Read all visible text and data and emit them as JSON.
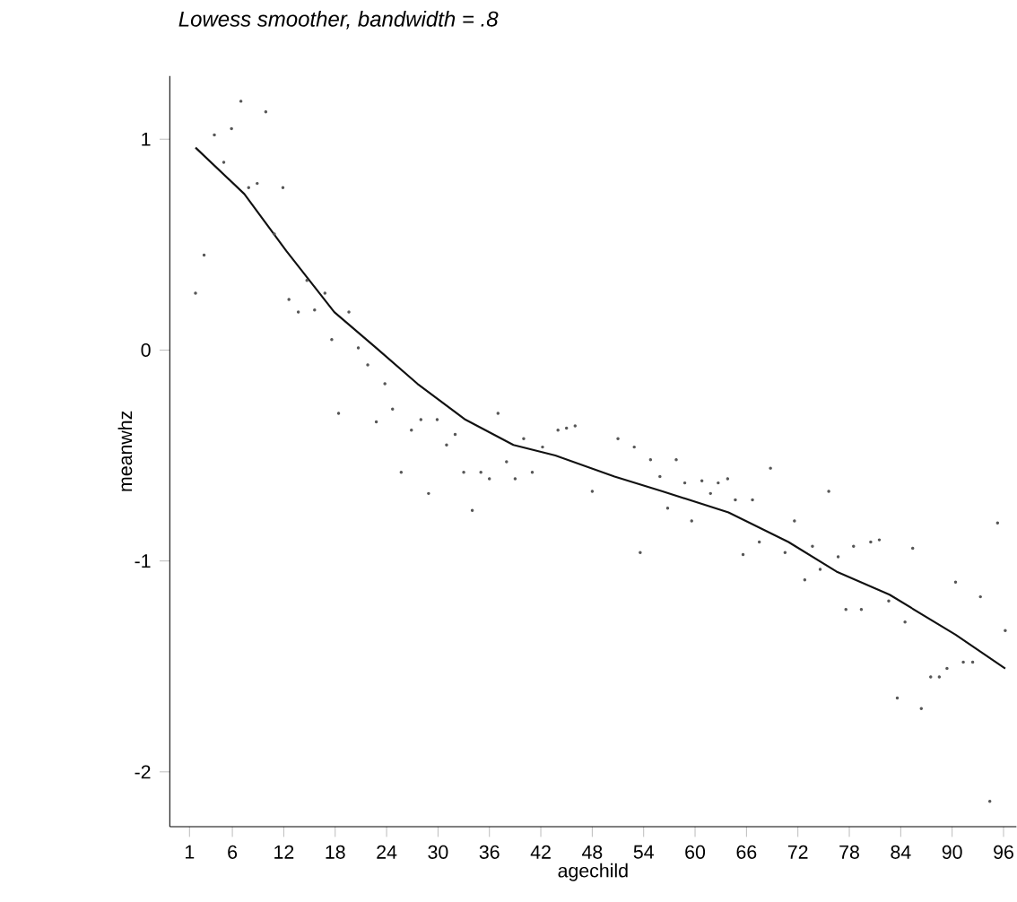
{
  "chart_data": {
    "type": "scatter",
    "title": "*Lowess smoother, bandwidth = .8*",
    "xlabel": "agechild",
    "ylabel": "meanwhz",
    "xlim": [
      -1.3,
      97.5
    ],
    "ylim": [
      -2.26,
      1.3
    ],
    "xticks": [
      1,
      6,
      12,
      18,
      24,
      30,
      36,
      42,
      48,
      54,
      60,
      66,
      72,
      78,
      84,
      90,
      96
    ],
    "yticks": [
      -2,
      -1,
      0,
      1
    ],
    "series": [
      {
        "color": "#555555",
        "x": [
          1.7,
          2.7,
          3.9,
          5,
          5.9,
          7,
          7.9,
          8.9,
          9.9,
          10.9,
          11.9,
          12.6,
          13.7,
          14.7,
          15.6,
          16.8,
          17.6,
          18.4,
          19.6,
          20.7,
          21.8,
          22.8,
          23.8,
          24.7,
          25.7,
          26.9,
          28,
          28.9,
          29.9,
          31,
          32,
          33,
          34,
          35,
          36,
          37,
          38,
          39,
          40,
          41,
          42.2,
          44,
          45,
          46,
          48,
          51,
          52.9,
          53.6,
          54.8,
          55.9,
          56.8,
          57.8,
          58.8,
          59.6,
          60.8,
          61.8,
          62.7,
          63.8,
          64.7,
          65.6,
          66.7,
          67.5,
          68.8,
          70.5,
          71.6,
          72.8,
          73.7,
          74.6,
          75.6,
          76.7,
          77.6,
          78.5,
          79.4,
          80.5,
          81.5,
          82.6,
          83.6,
          84.5,
          85.4,
          86.4,
          87.5,
          88.5,
          89.4,
          90.4,
          91.3,
          92.4,
          93.3,
          94.4,
          95.3,
          96.2
        ],
        "values": [
          0.27,
          0.45,
          1.02,
          0.89,
          1.05,
          1.18,
          0.77,
          0.79,
          1.13,
          0.55,
          0.77,
          0.24,
          0.18,
          0.33,
          0.19,
          0.27,
          0.05,
          -0.3,
          0.18,
          0.01,
          -0.07,
          -0.34,
          -0.16,
          -0.28,
          -0.58,
          -0.38,
          -0.33,
          -0.68,
          -0.33,
          -0.45,
          -0.4,
          -0.58,
          -0.76,
          -0.58,
          -0.61,
          -0.3,
          -0.53,
          -0.61,
          -0.42,
          -0.58,
          -0.46,
          -0.38,
          -0.37,
          -0.36,
          -0.67,
          -0.42,
          -0.46,
          -0.96,
          -0.52,
          -0.6,
          -0.75,
          -0.52,
          -0.63,
          -0.81,
          -0.62,
          -0.68,
          -0.63,
          -0.61,
          -0.71,
          -0.97,
          -0.71,
          -0.91,
          -0.56,
          -0.96,
          -0.81,
          -1.09,
          -0.93,
          -1.04,
          -0.67,
          -0.98,
          -1.23,
          -0.93,
          -1.23,
          -0.91,
          -0.9,
          -1.19,
          -1.65,
          -1.29,
          -0.94,
          -1.7,
          -1.55,
          -1.55,
          -1.51,
          -1.1,
          -1.48,
          -1.48,
          -1.17,
          -2.14,
          -0.82,
          -1.33
        ]
      },
      {
        "type": "line",
        "color": "#111111",
        "x": [
          1.7,
          7.4,
          12.3,
          17.9,
          22.8,
          27.6,
          33.2,
          38.8,
          43.7,
          50.6,
          56.2,
          63.9,
          70.9,
          76.5,
          82.7,
          90.4,
          96.2
        ],
        "values": [
          0.96,
          0.74,
          0.47,
          0.18,
          0.01,
          -0.16,
          -0.33,
          -0.45,
          -0.5,
          -0.6,
          -0.67,
          -0.77,
          -0.91,
          -1.05,
          -1.16,
          -1.35,
          -1.51
        ]
      }
    ]
  }
}
